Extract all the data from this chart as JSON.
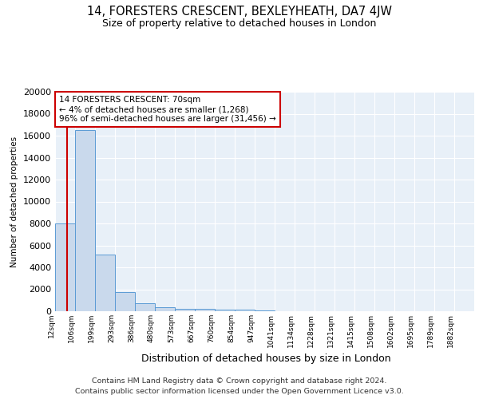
{
  "title": "14, FORESTERS CRESCENT, BEXLEYHEATH, DA7 4JW",
  "subtitle": "Size of property relative to detached houses in London",
  "xlabel": "Distribution of detached houses by size in London",
  "ylabel": "Number of detached properties",
  "bar_labels": [
    "12sqm",
    "106sqm",
    "199sqm",
    "293sqm",
    "386sqm",
    "480sqm",
    "573sqm",
    "667sqm",
    "760sqm",
    "854sqm",
    "947sqm",
    "1041sqm",
    "1134sqm",
    "1228sqm",
    "1321sqm",
    "1415sqm",
    "1508sqm",
    "1602sqm",
    "1695sqm",
    "1789sqm",
    "1882sqm"
  ],
  "bar_values": [
    8000,
    16500,
    5200,
    1750,
    750,
    350,
    250,
    200,
    175,
    150,
    50,
    30,
    20,
    15,
    10,
    8,
    6,
    5,
    4,
    3,
    2
  ],
  "bar_color": "#c9d9ec",
  "bar_edge_color": "#5b9bd5",
  "bg_color": "#e8f0f8",
  "grid_color": "#ffffff",
  "annotation_text": "14 FORESTERS CRESCENT: 70sqm\n← 4% of detached houses are smaller (1,268)\n96% of semi-detached houses are larger (31,456) →",
  "property_size": 70,
  "footnote1": "Contains HM Land Registry data © Crown copyright and database right 2024.",
  "footnote2": "Contains public sector information licensed under the Open Government Licence v3.0.",
  "ylim": [
    0,
    20000
  ],
  "yticks": [
    0,
    2000,
    4000,
    6000,
    8000,
    10000,
    12000,
    14000,
    16000,
    18000,
    20000
  ]
}
